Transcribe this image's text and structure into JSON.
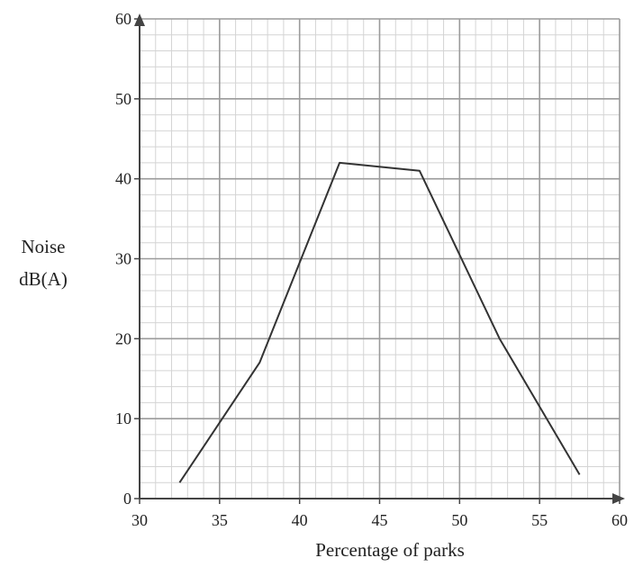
{
  "chart_data": {
    "type": "line",
    "xlabel": "Percentage of parks",
    "ylabel_lines": [
      "Noise",
      "dB(A)"
    ],
    "xlim": [
      30,
      60
    ],
    "ylim": [
      0,
      60
    ],
    "x_ticks": [
      30,
      35,
      40,
      45,
      50,
      55,
      60
    ],
    "y_ticks": [
      0,
      10,
      20,
      30,
      40,
      50,
      60
    ],
    "minor_step_x": 1,
    "minor_step_y": 2,
    "grid": true,
    "series": [
      {
        "x": [
          32.5,
          37.5,
          42.5,
          47.5,
          52.5,
          57.5
        ],
        "y": [
          2,
          17,
          42,
          41,
          20,
          3
        ]
      }
    ],
    "colors": {
      "line": "#333333",
      "major_grid": "#9a9a9a",
      "minor_grid": "#d4d4d4",
      "axis": "#444444"
    }
  }
}
